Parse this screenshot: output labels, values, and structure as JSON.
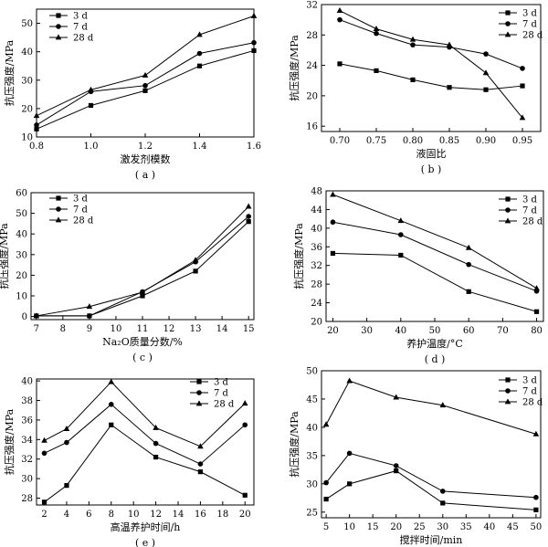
{
  "chart_data": [
    {
      "panel": "( a )",
      "type": "line",
      "xlabel": "激发剂模数",
      "ylabel": "抗压强度/MPa",
      "x": [
        0.8,
        1.0,
        1.2,
        1.4,
        1.6
      ],
      "xticks": [
        "0.8",
        "1.0",
        "1.2",
        "1.4",
        "1.6"
      ],
      "yticks": [
        "10",
        "20",
        "30",
        "40",
        "50"
      ],
      "xlim": [
        0.8,
        1.6
      ],
      "ylim": [
        10,
        55
      ],
      "legend_position": "top-left",
      "series": [
        {
          "name": "3 d",
          "marker": "square",
          "values": [
            12.8,
            21.1,
            26.3,
            35.0,
            40.4
          ]
        },
        {
          "name": "7 d",
          "marker": "circle",
          "values": [
            14.2,
            26.0,
            28.1,
            39.4,
            43.2
          ]
        },
        {
          "name": "28 d",
          "marker": "triangle",
          "values": [
            17.5,
            26.6,
            31.7,
            46.0,
            52.6
          ]
        }
      ]
    },
    {
      "panel": "( b )",
      "type": "line",
      "xlabel": "液固比",
      "ylabel": "抗压强度/MPa",
      "x": [
        0.7,
        0.75,
        0.8,
        0.85,
        0.9,
        0.95
      ],
      "xticks": [
        "0.70",
        "0.75",
        "0.80",
        "0.85",
        "0.90",
        "0.95"
      ],
      "yticks": [
        "16",
        "20",
        "24",
        "28",
        "32"
      ],
      "xlim": [
        0.675,
        0.975
      ],
      "ylim": [
        15.3,
        32
      ],
      "legend_position": "top-right",
      "series": [
        {
          "name": "3 d",
          "marker": "square",
          "values": [
            24.2,
            23.3,
            22.1,
            21.1,
            20.8,
            21.3
          ]
        },
        {
          "name": "7 d",
          "marker": "circle",
          "values": [
            30.0,
            28.2,
            26.7,
            26.4,
            25.5,
            23.6
          ]
        },
        {
          "name": "28 d",
          "marker": "triangle",
          "values": [
            31.2,
            28.8,
            27.4,
            26.7,
            23.0,
            17.1
          ]
        }
      ]
    },
    {
      "panel": "( c )",
      "type": "line",
      "xlabel": "Na₂O质量分数/%",
      "ylabel": "抗压强度/MPa",
      "x": [
        7,
        9,
        11,
        13,
        15
      ],
      "xticks": [
        "7",
        "8",
        "9",
        "10",
        "11",
        "12",
        "13",
        "14",
        "15"
      ],
      "yticks": [
        "0",
        "10",
        "20",
        "30",
        "40",
        "50",
        "60"
      ],
      "xlim": [
        6.8,
        15.2
      ],
      "ylim": [
        -1.5,
        60
      ],
      "legend_position": "top-left",
      "series": [
        {
          "name": "3 d",
          "marker": "square",
          "values": [
            0.3,
            0.3,
            10.0,
            22.0,
            46.0
          ]
        },
        {
          "name": "7 d",
          "marker": "circle",
          "values": [
            0.3,
            0.3,
            12.0,
            26.5,
            48.5
          ]
        },
        {
          "name": "28 d",
          "marker": "triangle",
          "values": [
            0.3,
            4.8,
            11.8,
            27.3,
            53.3
          ]
        }
      ]
    },
    {
      "panel": "( d )",
      "type": "line",
      "xlabel": "养护温度/°C",
      "ylabel": "抗压强度/MPa",
      "x": [
        20,
        40,
        60,
        80
      ],
      "xticks": [
        "20",
        "30",
        "40",
        "50",
        "60",
        "70",
        "80"
      ],
      "yticks": [
        "20",
        "24",
        "28",
        "32",
        "36",
        "40",
        "44",
        "48"
      ],
      "xlim": [
        18,
        82
      ],
      "ylim": [
        20,
        48
      ],
      "legend_position": "top-right",
      "series": [
        {
          "name": "3 d",
          "marker": "square",
          "values": [
            34.6,
            34.2,
            26.4,
            22.1
          ]
        },
        {
          "name": "7 d",
          "marker": "circle",
          "values": [
            41.3,
            38.6,
            32.2,
            26.5
          ]
        },
        {
          "name": "28 d",
          "marker": "triangle",
          "values": [
            47.2,
            41.6,
            35.8,
            27.1
          ]
        }
      ]
    },
    {
      "panel": "( e )",
      "type": "line",
      "xlabel": "高温养护时间/h",
      "ylabel": "抗压强度/MPa",
      "x": [
        2,
        4,
        8,
        12,
        16,
        20
      ],
      "xticks": [
        "2",
        "4",
        "6",
        "8",
        "10",
        "12",
        "14",
        "16",
        "18",
        "20"
      ],
      "yticks": [
        "28",
        "30",
        "32",
        "34",
        "36",
        "38",
        "40"
      ],
      "xlim": [
        1.3,
        20.8
      ],
      "ylim": [
        27.3,
        40.2
      ],
      "legend_position": "top-right",
      "series": [
        {
          "name": "3 d",
          "marker": "square",
          "values": [
            27.6,
            29.3,
            35.5,
            32.2,
            30.7,
            28.3
          ]
        },
        {
          "name": "7 d",
          "marker": "circle",
          "values": [
            32.6,
            33.7,
            37.6,
            33.6,
            31.5,
            35.5
          ]
        },
        {
          "name": "28 d",
          "marker": "triangle",
          "values": [
            33.9,
            35.1,
            39.9,
            35.2,
            33.3,
            37.7
          ]
        }
      ]
    },
    {
      "panel": "( f )",
      "type": "line",
      "xlabel": "搅拌时间/min",
      "ylabel": "抗压强度/MPa",
      "x": [
        5,
        10,
        20,
        30,
        50
      ],
      "xticks": [
        "5",
        "10",
        "15",
        "20",
        "25",
        "30",
        "35",
        "40",
        "45",
        "50"
      ],
      "yticks": [
        "25",
        "30",
        "35",
        "40",
        "45",
        "50"
      ],
      "xlim": [
        4,
        51
      ],
      "ylim": [
        24,
        50
      ],
      "legend_position": "top-right",
      "series": [
        {
          "name": "3 d",
          "marker": "square",
          "values": [
            27.3,
            30.0,
            32.3,
            26.6,
            25.4
          ]
        },
        {
          "name": "7 d",
          "marker": "circle",
          "values": [
            30.2,
            35.4,
            33.2,
            28.7,
            27.6
          ]
        },
        {
          "name": "28 d",
          "marker": "triangle",
          "values": [
            40.5,
            48.2,
            45.3,
            43.9,
            38.8
          ]
        }
      ]
    }
  ]
}
